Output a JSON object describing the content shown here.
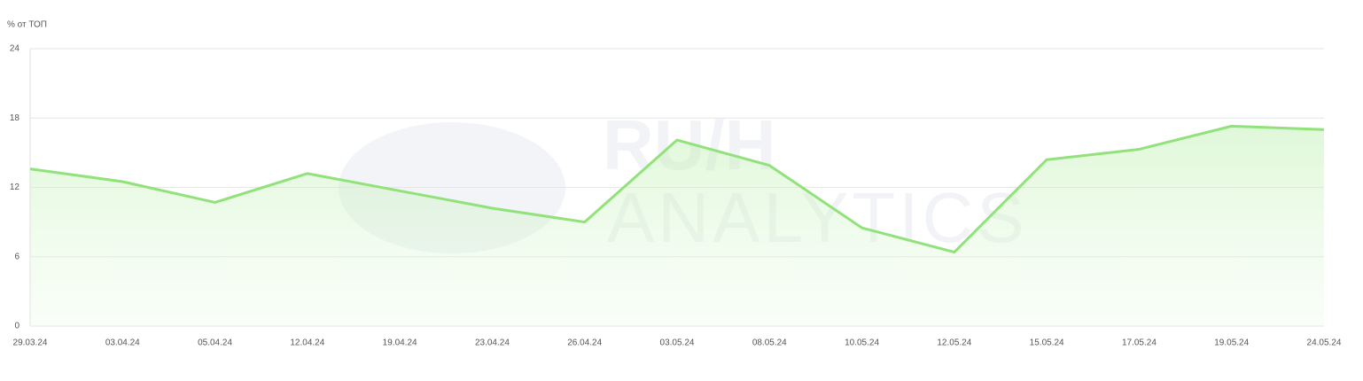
{
  "chart_data": {
    "type": "line",
    "y_label": "% от ТОП",
    "watermark": [
      "RU/H",
      "ANALYTICS"
    ],
    "categories": [
      "29.03.24",
      "03.04.24",
      "05.04.24",
      "12.04.24",
      "19.04.24",
      "23.04.24",
      "26.04.24",
      "03.05.24",
      "08.05.24",
      "10.05.24",
      "12.05.24",
      "15.05.24",
      "17.05.24",
      "19.05.24",
      "24.05.24"
    ],
    "values": [
      13.6,
      12.5,
      10.7,
      13.2,
      11.7,
      10.2,
      9.0,
      16.1,
      13.9,
      8.5,
      6.4,
      14.4,
      15.3,
      17.3,
      17.0
    ],
    "color": "#92e27c",
    "area": true,
    "ylim": [
      0,
      24
    ],
    "yticks": [
      0,
      6,
      12,
      18,
      24
    ],
    "grid": true
  }
}
